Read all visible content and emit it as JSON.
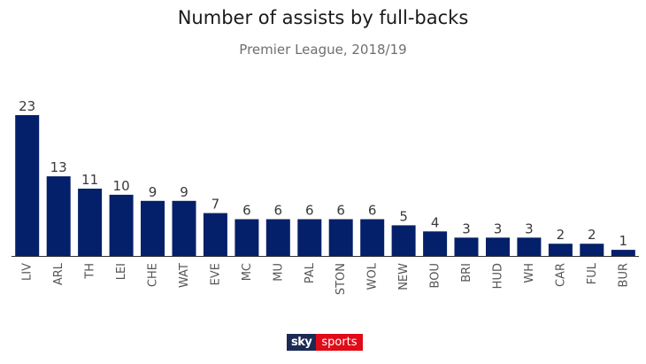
{
  "chart_data": {
    "type": "bar",
    "title": "Number of assists by full-backs",
    "subtitle": "Premier League, 2018/19",
    "xlabel": "",
    "ylabel": "",
    "categories": [
      "LIV",
      "ARL",
      "TH",
      "LEI",
      "CHE",
      "WAT",
      "EVE",
      "MC",
      "MU",
      "PAL",
      "STON",
      "WOL",
      "NEW",
      "BOU",
      "BRI",
      "HUD",
      "WH",
      "CAR",
      "FUL",
      "BUR"
    ],
    "values": [
      23,
      13,
      11,
      10,
      9,
      9,
      7,
      6,
      6,
      6,
      6,
      6,
      5,
      4,
      3,
      3,
      3,
      2,
      2,
      1
    ],
    "ylim": [
      0,
      23
    ],
    "grid": false,
    "data_labels": true,
    "bar_color": "#05206a",
    "axis_color": "#333333"
  },
  "branding": {
    "logo_sky": "sky",
    "logo_sports": "sports",
    "logo_sky_color": "#1c2a55",
    "logo_sports_color": "#e10a17"
  }
}
